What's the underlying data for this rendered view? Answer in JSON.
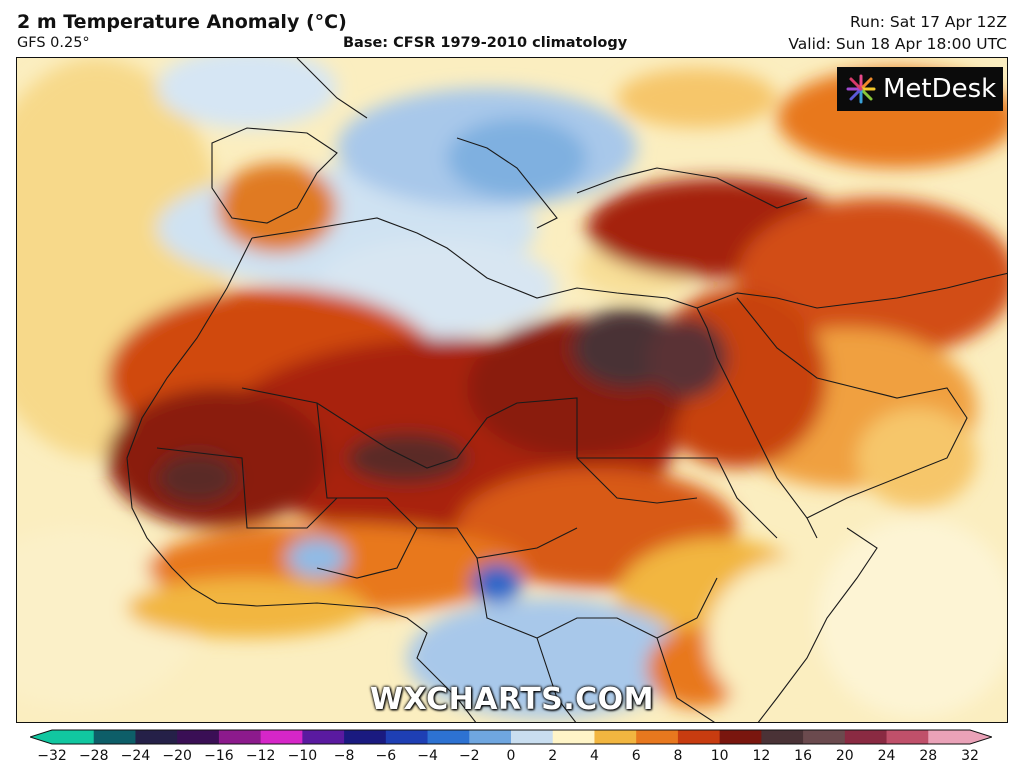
{
  "header": {
    "title": "2 m Temperature Anomaly (°C)",
    "model": "GFS 0.25°",
    "base": "Base: CFSR 1979-2010 climatology",
    "run": "Run: Sat 17 Apr 12Z",
    "valid": "Valid: Sun 18 Apr 18:00 UTC"
  },
  "logo": {
    "text": "MetDesk",
    "icon": "metdesk-starburst-icon"
  },
  "watermark": "WXCHARTS.COM",
  "colorbar": {
    "ticks": [
      "−32",
      "−28",
      "−24",
      "−20",
      "−16",
      "−12",
      "−10",
      "−8",
      "−6",
      "−4",
      "−2",
      "0",
      "2",
      "4",
      "6",
      "8",
      "10",
      "12",
      "16",
      "20",
      "24",
      "28",
      "32"
    ],
    "colors": [
      "#11c7a0",
      "#0d5e68",
      "#252048",
      "#3a0f55",
      "#8c1a8c",
      "#d626c8",
      "#5a1aa0",
      "#1a1a80",
      "#1e3fb4",
      "#2d72d2",
      "#6fa6e0",
      "#c9def0",
      "#fff5c8",
      "#f2b640",
      "#e8781e",
      "#c83c10",
      "#7a160e",
      "#4a3236",
      "#6b4a4e",
      "#8a2a42",
      "#c0506a",
      "#eaa2b8"
    ]
  },
  "map": {
    "region": "North Africa and Middle East",
    "colors": {
      "ocean_neutral": "#fbeec0",
      "cold_light": "#cfe2f2",
      "cold": "#7fb0e0",
      "cold_deep": "#2d66c8",
      "warm_light": "#f6c66a",
      "warm": "#ec8a28",
      "hot": "#c8420e",
      "very_hot": "#8a1a0a",
      "extreme": "#4a3236",
      "border": "#1a1a1a"
    }
  }
}
